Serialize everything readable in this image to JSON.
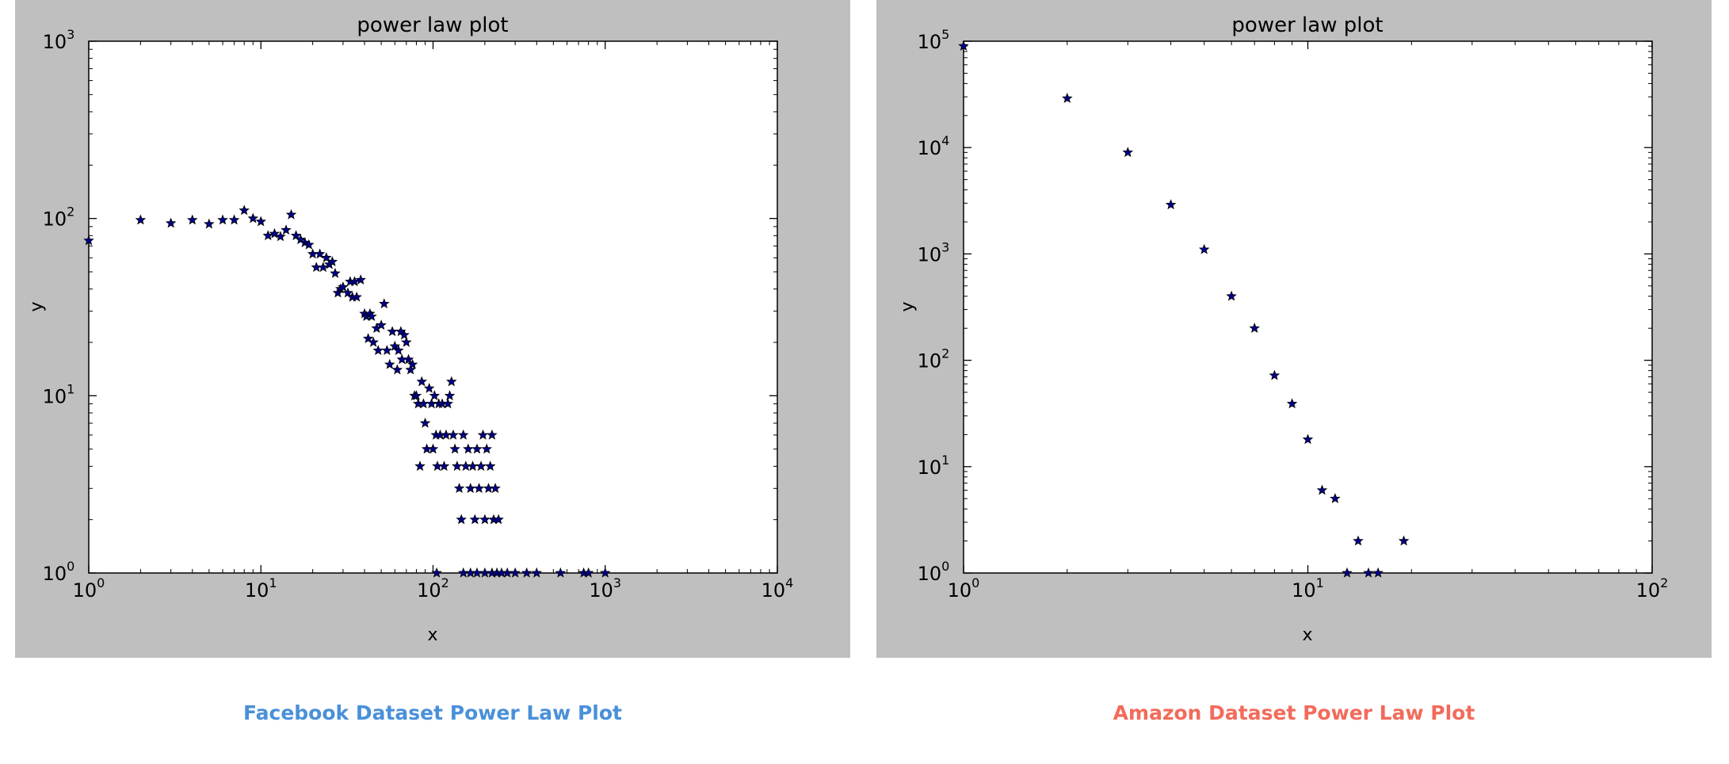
{
  "chart_data": [
    {
      "type": "scatter",
      "title": "power law plot",
      "xlabel": "x",
      "ylabel": "y",
      "xscale": "log",
      "yscale": "log",
      "xlim": [
        1,
        10000
      ],
      "ylim": [
        1,
        1000
      ],
      "xticks": [
        {
          "value": 1,
          "exp": "0"
        },
        {
          "value": 10,
          "exp": "1"
        },
        {
          "value": 100,
          "exp": "2"
        },
        {
          "value": 1000,
          "exp": "3"
        },
        {
          "value": 10000,
          "exp": "4"
        }
      ],
      "yticks": [
        {
          "value": 1,
          "exp": "0"
        },
        {
          "value": 10,
          "exp": "1"
        },
        {
          "value": 100,
          "exp": "2"
        },
        {
          "value": 1000,
          "exp": "3"
        }
      ],
      "marker": "star",
      "marker_color": "#00008b",
      "grid": false,
      "legend": "none",
      "points": [
        [
          1,
          75
        ],
        [
          2,
          98
        ],
        [
          3,
          94
        ],
        [
          4,
          98
        ],
        [
          5,
          93
        ],
        [
          6,
          98
        ],
        [
          7,
          98
        ],
        [
          8,
          111
        ],
        [
          9,
          100
        ],
        [
          10,
          96
        ],
        [
          11,
          80
        ],
        [
          12,
          82
        ],
        [
          13,
          79
        ],
        [
          14,
          86
        ],
        [
          15,
          105
        ],
        [
          16,
          80
        ],
        [
          17,
          76
        ],
        [
          18,
          73
        ],
        [
          19,
          71
        ],
        [
          20,
          63
        ],
        [
          21,
          53
        ],
        [
          22,
          63
        ],
        [
          23,
          53
        ],
        [
          24,
          60
        ],
        [
          25,
          55
        ],
        [
          26,
          57
        ],
        [
          27,
          49
        ],
        [
          28,
          38
        ],
        [
          29,
          40
        ],
        [
          30,
          41
        ],
        [
          32,
          38
        ],
        [
          33,
          44
        ],
        [
          34,
          36
        ],
        [
          35,
          44
        ],
        [
          36,
          36
        ],
        [
          38,
          45
        ],
        [
          40,
          29
        ],
        [
          41,
          28
        ],
        [
          42,
          21
        ],
        [
          43,
          29
        ],
        [
          44,
          28
        ],
        [
          45,
          20
        ],
        [
          47,
          24
        ],
        [
          48,
          18
        ],
        [
          50,
          25
        ],
        [
          52,
          33
        ],
        [
          54,
          18
        ],
        [
          56,
          15
        ],
        [
          58,
          23
        ],
        [
          60,
          19
        ],
        [
          62,
          14
        ],
        [
          63,
          18
        ],
        [
          65,
          23
        ],
        [
          66,
          16
        ],
        [
          68,
          22
        ],
        [
          70,
          20
        ],
        [
          72,
          16
        ],
        [
          74,
          14
        ],
        [
          76,
          15
        ],
        [
          78,
          10
        ],
        [
          80,
          10
        ],
        [
          82,
          9
        ],
        [
          84,
          4
        ],
        [
          86,
          12
        ],
        [
          88,
          9
        ],
        [
          90,
          7
        ],
        [
          92,
          5
        ],
        [
          95,
          11
        ],
        [
          98,
          9
        ],
        [
          100,
          5
        ],
        [
          102,
          10
        ],
        [
          104,
          6
        ],
        [
          106,
          4
        ],
        [
          108,
          9
        ],
        [
          110,
          6
        ],
        [
          113,
          9
        ],
        [
          116,
          4
        ],
        [
          119,
          6
        ],
        [
          122,
          9
        ],
        [
          125,
          10
        ],
        [
          128,
          12
        ],
        [
          131,
          6
        ],
        [
          134,
          5
        ],
        [
          138,
          4
        ],
        [
          142,
          3
        ],
        [
          146,
          2
        ],
        [
          150,
          6
        ],
        [
          155,
          4
        ],
        [
          160,
          5
        ],
        [
          165,
          3
        ],
        [
          170,
          4
        ],
        [
          175,
          2
        ],
        [
          180,
          5
        ],
        [
          185,
          3
        ],
        [
          190,
          4
        ],
        [
          195,
          6
        ],
        [
          200,
          2
        ],
        [
          205,
          5
        ],
        [
          210,
          3
        ],
        [
          215,
          4
        ],
        [
          220,
          6
        ],
        [
          225,
          2
        ],
        [
          230,
          3
        ],
        [
          240,
          2
        ],
        [
          105,
          1
        ],
        [
          150,
          1
        ],
        [
          165,
          1
        ],
        [
          180,
          1
        ],
        [
          200,
          1
        ],
        [
          220,
          1
        ],
        [
          235,
          1
        ],
        [
          250,
          1
        ],
        [
          270,
          1
        ],
        [
          300,
          1
        ],
        [
          350,
          1
        ],
        [
          400,
          1
        ],
        [
          550,
          1
        ],
        [
          750,
          1
        ],
        [
          800,
          1
        ],
        [
          1000,
          1
        ]
      ]
    },
    {
      "type": "scatter",
      "title": "power law plot",
      "xlabel": "x",
      "ylabel": "y",
      "xscale": "log",
      "yscale": "log",
      "xlim": [
        1,
        100
      ],
      "ylim": [
        1,
        100000
      ],
      "xticks": [
        {
          "value": 1,
          "exp": "0"
        },
        {
          "value": 10,
          "exp": "1"
        },
        {
          "value": 100,
          "exp": "2"
        }
      ],
      "yticks": [
        {
          "value": 1,
          "exp": "0"
        },
        {
          "value": 10,
          "exp": "1"
        },
        {
          "value": 100,
          "exp": "2"
        },
        {
          "value": 1000,
          "exp": "3"
        },
        {
          "value": 10000,
          "exp": "4"
        },
        {
          "value": 100000,
          "exp": "5"
        }
      ],
      "marker": "star",
      "marker_color": "#00008b",
      "grid": false,
      "legend": "none",
      "points": [
        [
          1,
          90000
        ],
        [
          2,
          29000
        ],
        [
          3,
          9000
        ],
        [
          4,
          2900
        ],
        [
          5,
          1100
        ],
        [
          6,
          400
        ],
        [
          7,
          200
        ],
        [
          8,
          72
        ],
        [
          9,
          39
        ],
        [
          10,
          18
        ],
        [
          11,
          6
        ],
        [
          12,
          5
        ],
        [
          13,
          1
        ],
        [
          14,
          2
        ],
        [
          15,
          1
        ],
        [
          16,
          1
        ],
        [
          19,
          2
        ]
      ]
    }
  ],
  "captions": [
    {
      "text": "Facebook Dataset Power Law Plot",
      "color": "#4a90d9"
    },
    {
      "text": "Amazon Dataset Power Law Plot",
      "color": "#f26b5b"
    }
  ],
  "styles": {
    "figure_bg": "#bfbfbf",
    "axes_bg": "#ffffff",
    "axis_color": "#000000"
  }
}
